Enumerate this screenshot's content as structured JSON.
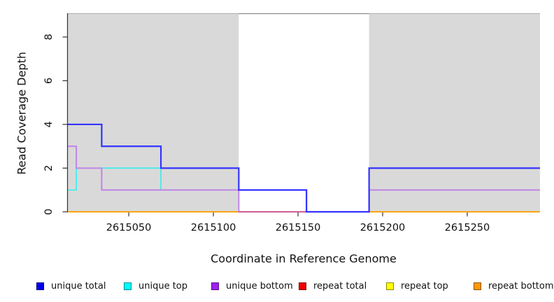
{
  "figure": {
    "xlabel": "Coordinate in Reference Genome",
    "ylabel": "Read Coverage Depth"
  },
  "chart_data": {
    "type": "line",
    "subtype": "step",
    "title": "",
    "xlabel": "Coordinate in Reference Genome",
    "ylabel": "Read Coverage Depth",
    "xlim": [
      2615014,
      2615293
    ],
    "ylim": [
      0,
      9.07
    ],
    "xticks": [
      2615050,
      2615100,
      2615150,
      2615200,
      2615250
    ],
    "yticks": [
      0,
      2,
      4,
      6,
      8
    ],
    "grid": false,
    "legend_position": "bottom",
    "shaded_regions": [
      {
        "x0": 2615014,
        "x1": 2615115,
        "color": "#d9d9d9"
      },
      {
        "x0": 2615192,
        "x1": 2615293,
        "color": "#d9d9d9"
      }
    ],
    "series": [
      {
        "name": "repeat top",
        "color": "#ffff00",
        "line_width": 1.6,
        "steps": [
          [
            2615014,
            0
          ]
        ]
      },
      {
        "name": "repeat bottom",
        "color": "#ff9d0c",
        "line_width": 1.8,
        "steps": [
          [
            2615014,
            0
          ]
        ]
      },
      {
        "name": "unique top",
        "color": "#33eeee",
        "line_width": 1.6,
        "steps": [
          [
            2615014,
            1
          ],
          [
            2615019,
            2
          ],
          [
            2615069,
            1
          ],
          [
            2615155,
            0
          ],
          [
            2615192,
            1
          ]
        ]
      },
      {
        "name": "unique bottom",
        "color": "#c184e8",
        "line_width": 2.0,
        "steps": [
          [
            2615014,
            3
          ],
          [
            2615019,
            2
          ],
          [
            2615034,
            1
          ],
          [
            2615115,
            0
          ],
          [
            2615192,
            1
          ]
        ]
      },
      {
        "name": "repeat total",
        "color": "#d2527a",
        "line_width": 1.6,
        "steps": [
          [
            2615014,
            0
          ]
        ],
        "visible_range": [
          2615115,
          2615155
        ]
      },
      {
        "name": "unique total",
        "color": "#3333ff",
        "line_width": 2.2,
        "steps": [
          [
            2615014,
            4
          ],
          [
            2615034,
            3
          ],
          [
            2615069,
            2
          ],
          [
            2615115,
            1
          ],
          [
            2615155,
            0
          ],
          [
            2615192,
            2
          ]
        ]
      }
    ]
  },
  "legend": {
    "items": [
      {
        "label": "unique total",
        "color": "#0000ee"
      },
      {
        "label": "unique top",
        "color": "#00ffff"
      },
      {
        "label": "unique bottom",
        "color": "#a020f0"
      },
      {
        "label": "repeat total",
        "color": "#ee0000"
      },
      {
        "label": "repeat top",
        "color": "#ffff00"
      },
      {
        "label": "repeat bottom",
        "color": "#ff9900"
      }
    ]
  },
  "colors": {
    "axis": "#333333",
    "tick_text": "#111111",
    "plot_top_border": "#8a8a8a",
    "shade": "#d9d9d9"
  }
}
